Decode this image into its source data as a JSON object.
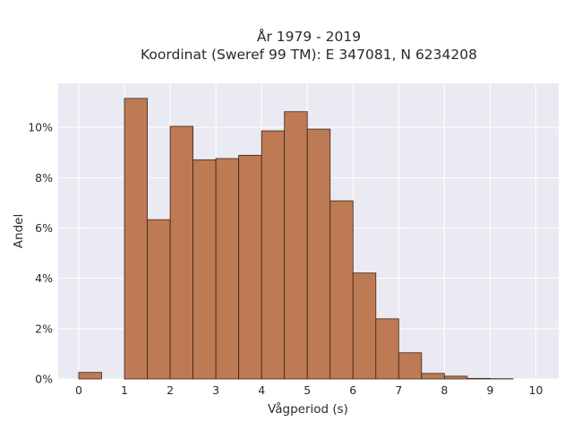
{
  "title_line1": "År 1979 - 2019",
  "title_line2": "Koordinat (Sweref 99 TM): E 347081, N 6234208",
  "chart_data": {
    "type": "bar",
    "subtype": "histogram",
    "title": "År 1979 - 2019\nKoordinat (Sweref 99 TM): E 347081, N 6234208",
    "xlabel": "Vågperiod (s)",
    "ylabel": "Andel",
    "bin_width": 0.5,
    "bin_starts": [
      0,
      0.5,
      1,
      1.5,
      2,
      2.5,
      3,
      3.5,
      4,
      4.5,
      5,
      5.5,
      6,
      6.5,
      7,
      7.5,
      8,
      8.5,
      9,
      9.5
    ],
    "values": [
      0.26,
      0,
      11.15,
      6.33,
      10.04,
      8.71,
      8.76,
      8.89,
      9.86,
      10.62,
      9.93,
      7.08,
      4.21,
      2.39,
      1.04,
      0.22,
      0.11,
      0.02,
      0.01,
      0
    ],
    "value_unit": "%",
    "xlim": [
      -0.45,
      10.5
    ],
    "ylim": [
      0,
      11.75
    ],
    "xticks": [
      0,
      1,
      2,
      3,
      4,
      5,
      6,
      7,
      8,
      9,
      10
    ],
    "xtick_labels": [
      "0",
      "1",
      "2",
      "3",
      "4",
      "5",
      "6",
      "7",
      "8",
      "9",
      "10"
    ],
    "yticks": [
      0,
      2,
      4,
      6,
      8,
      10
    ],
    "ytick_labels": [
      "0%",
      "2%",
      "4%",
      "6%",
      "8%",
      "10%"
    ],
    "grid": true,
    "colors": {
      "bar_fill": "#bd7a55",
      "bar_edge": "#3d2314",
      "plot_bg": "#eaeaf2",
      "grid": "#ffffff"
    }
  }
}
